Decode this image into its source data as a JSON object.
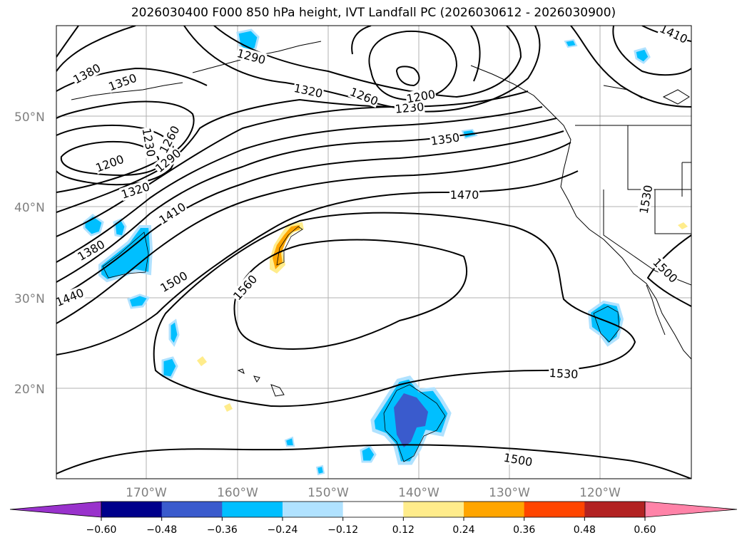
{
  "title": "2026030400 F000 850 hPa height, IVT Landfall PC (2026030612 - 2026030900)",
  "map": {
    "lat_labels": [
      "50°N",
      "40°N",
      "30°N",
      "20°N"
    ],
    "lon_labels": [
      "170°W",
      "160°W",
      "150°W",
      "140°W",
      "130°W",
      "120°W"
    ],
    "gridlines": true,
    "coastline_color": "#000000",
    "contour_color": "#000000",
    "contour_labels": [
      "1380",
      "1350",
      "1320",
      "1260",
      "1230",
      "1200",
      "1290",
      "1350",
      "1200",
      "1230",
      "1260",
      "1290",
      "1320",
      "1410",
      "1470",
      "1530",
      "1380",
      "1440",
      "1500",
      "1560",
      "1500",
      "1530",
      "1500",
      "1410"
    ]
  },
  "colorbar": {
    "colors": [
      "#9932cc",
      "#00008b",
      "#3a5bcd",
      "#00bfff",
      "#b0e2ff",
      "#ffffff",
      "#ffec8b",
      "#ffa500",
      "#ff4500",
      "#b22222",
      "#ff83a8"
    ],
    "ticks": [
      "−0.60",
      "−0.48",
      "−0.36",
      "−0.24",
      "−0.12",
      "0.12",
      "0.24",
      "0.36",
      "0.48",
      "0.60"
    ]
  }
}
